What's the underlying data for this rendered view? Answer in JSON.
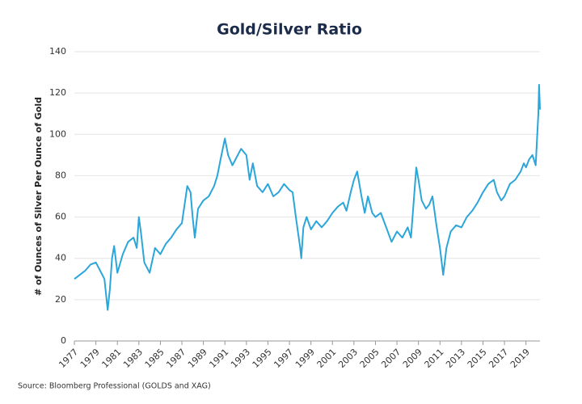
{
  "chart_data": {
    "type": "line",
    "title": "Gold/Silver Ratio",
    "ylabel": "# of Ounces of Silver Per Ounce of Gold",
    "source": "Source: Bloomberg Professional (GOLDS and XAG)",
    "color": "#2ba6da",
    "x": [
      1977.0,
      1977.5,
      1978.0,
      1978.5,
      1979.0,
      1979.5,
      1979.8,
      1980.0,
      1980.1,
      1980.3,
      1980.5,
      1980.7,
      1981.0,
      1981.5,
      1982.0,
      1982.5,
      1982.8,
      1983.0,
      1983.2,
      1983.5,
      1984.0,
      1984.5,
      1985.0,
      1985.5,
      1986.0,
      1986.5,
      1987.0,
      1987.5,
      1987.8,
      1988.0,
      1988.2,
      1988.5,
      1989.0,
      1989.5,
      1990.0,
      1990.3,
      1990.6,
      1991.0,
      1991.3,
      1991.7,
      1992.0,
      1992.5,
      1993.0,
      1993.3,
      1993.6,
      1994.0,
      1994.5,
      1995.0,
      1995.5,
      1996.0,
      1996.5,
      1997.0,
      1997.3,
      1997.6,
      1998.0,
      1998.1,
      1998.3,
      1998.6,
      1999.0,
      1999.5,
      2000.0,
      2000.5,
      2001.0,
      2001.5,
      2002.0,
      2002.3,
      2002.7,
      2003.0,
      2003.3,
      2003.7,
      2004.0,
      2004.3,
      2004.7,
      2005.0,
      2005.5,
      2006.0,
      2006.5,
      2007.0,
      2007.5,
      2008.0,
      2008.3,
      2008.8,
      2009.0,
      2009.3,
      2009.7,
      2010.0,
      2010.3,
      2010.7,
      2011.0,
      2011.3,
      2011.6,
      2012.0,
      2012.5,
      2013.0,
      2013.5,
      2014.0,
      2014.5,
      2015.0,
      2015.5,
      2016.0,
      2016.3,
      2016.7,
      2017.0,
      2017.5,
      2018.0,
      2018.5,
      2018.8,
      2019.0,
      2019.3,
      2019.6,
      2019.9,
      2020.0,
      2020.15,
      2020.22,
      2020.3
    ],
    "values": [
      30,
      32,
      34,
      37,
      38,
      33,
      30,
      20,
      15,
      25,
      40,
      46,
      33,
      42,
      48,
      50,
      45,
      60,
      52,
      38,
      33,
      45,
      42,
      47,
      50,
      54,
      57,
      75,
      72,
      60,
      50,
      64,
      68,
      70,
      75,
      80,
      88,
      98,
      90,
      85,
      88,
      93,
      90,
      78,
      86,
      75,
      72,
      76,
      70,
      72,
      76,
      73,
      72,
      60,
      45,
      40,
      55,
      60,
      54,
      58,
      55,
      58,
      62,
      65,
      67,
      63,
      72,
      78,
      82,
      70,
      62,
      70,
      62,
      60,
      62,
      55,
      48,
      53,
      50,
      55,
      50,
      84,
      78,
      68,
      64,
      66,
      70,
      55,
      45,
      32,
      45,
      53,
      56,
      55,
      60,
      63,
      67,
      72,
      76,
      78,
      72,
      68,
      70,
      76,
      78,
      82,
      86,
      84,
      88,
      90,
      85,
      95,
      110,
      124,
      112
    ],
    "xlim": [
      1977,
      2020.3
    ],
    "xticks": [
      1977,
      1979,
      1981,
      1983,
      1985,
      1987,
      1989,
      1991,
      1993,
      1995,
      1997,
      1999,
      2001,
      2003,
      2005,
      2007,
      2009,
      2011,
      2013,
      2015,
      2017,
      2019
    ],
    "ylim": [
      0,
      140
    ],
    "yticks": [
      0,
      20,
      40,
      60,
      80,
      100,
      120,
      140
    ],
    "grid": true
  }
}
